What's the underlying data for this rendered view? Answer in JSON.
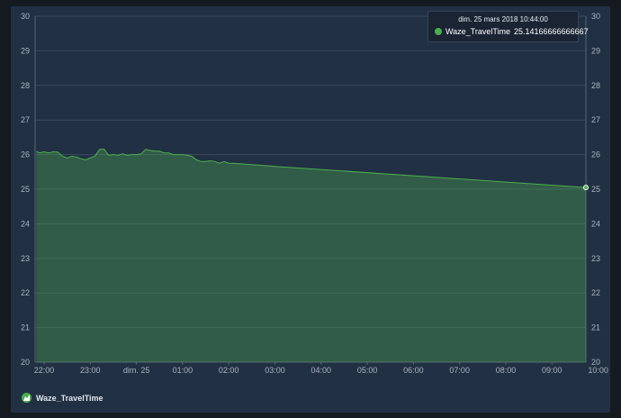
{
  "chart_data": {
    "type": "area",
    "y_ticks": [
      "30",
      "29",
      "28",
      "27",
      "26",
      "25",
      "24",
      "23",
      "22",
      "21",
      "20"
    ],
    "x_ticks": [
      "22:00",
      "23:00",
      "dim. 25",
      "01:00",
      "02:00",
      "03:00",
      "04:00",
      "05:00",
      "06:00",
      "07:00",
      "08:00",
      "09:00",
      "10:00"
    ],
    "ylim": [
      20,
      30
    ],
    "grid": true,
    "series": [
      {
        "name": "Waze_TravelTime",
        "color": "#4caf50",
        "x_hours": [
          21.83,
          21.9,
          22.0,
          22.1,
          22.2,
          22.3,
          22.4,
          22.5,
          22.6,
          22.7,
          22.8,
          22.9,
          23.0,
          23.1,
          23.2,
          23.3,
          23.4,
          23.5,
          23.6,
          23.7,
          23.8,
          23.9,
          24.0,
          24.1,
          24.2,
          24.3,
          24.4,
          24.5,
          24.6,
          24.7,
          24.8,
          24.9,
          25.0,
          25.1,
          25.2,
          25.3,
          25.4,
          25.5,
          25.6,
          25.7,
          25.8,
          25.9,
          26.0,
          26.1,
          26.2,
          26.3,
          26.4,
          26.5,
          26.6,
          26.7,
          26.8,
          26.9,
          27.0,
          34.73
        ],
        "values": [
          26.1,
          26.05,
          26.08,
          26.05,
          26.08,
          26.07,
          25.95,
          25.9,
          25.95,
          25.93,
          25.88,
          25.85,
          25.9,
          25.95,
          26.15,
          26.15,
          25.98,
          26.0,
          25.98,
          26.02,
          25.98,
          26.0,
          26.0,
          26.02,
          26.15,
          26.12,
          26.1,
          26.1,
          26.05,
          26.05,
          26.0,
          26.0,
          26.0,
          25.98,
          25.95,
          25.85,
          25.8,
          25.8,
          25.82,
          25.8,
          25.75,
          25.8,
          25.75,
          25.75,
          25.74,
          25.73,
          25.72,
          25.71,
          25.7,
          25.69,
          25.68,
          25.67,
          25.66,
          25.05
        ]
      }
    ]
  },
  "tooltip": {
    "time": "dim. 25 mars 2018 10:44:00",
    "series_name": "Waze_TravelTime",
    "value": "25.14166666666667"
  },
  "legend": {
    "label": "Waze_TravelTime"
  }
}
